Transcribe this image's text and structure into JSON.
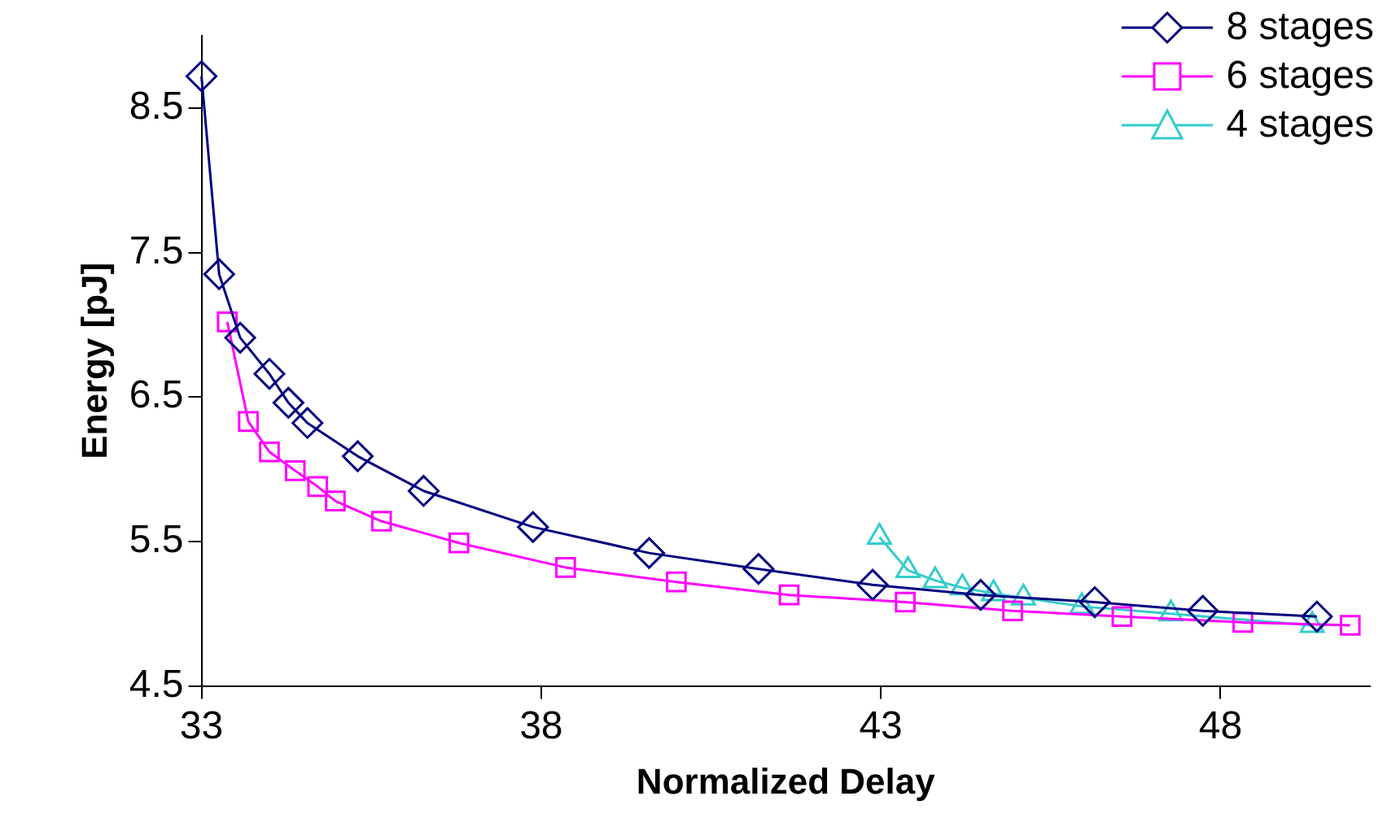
{
  "chart_data": {
    "type": "line",
    "xlabel": "Normalized Delay",
    "ylabel": "Energy [pJ]",
    "xlim": [
      33,
      50.2
    ],
    "xticks": [
      33,
      38,
      43,
      48
    ],
    "ylim": [
      4.5,
      9.0
    ],
    "yticks": [
      4.5,
      5.5,
      6.5,
      7.5,
      8.5
    ],
    "grid": false,
    "legend": "top right",
    "series": [
      {
        "name": "8 stages",
        "color": "#000080",
        "marker": "diamond",
        "x": [
          33.0,
          33.26,
          33.57,
          34.0,
          34.28,
          34.56,
          35.3,
          36.27,
          37.88,
          39.59,
          41.2,
          42.88,
          44.47,
          46.15,
          47.74,
          49.42
        ],
        "values": [
          8.72,
          7.35,
          6.91,
          6.66,
          6.46,
          6.32,
          6.09,
          5.85,
          5.6,
          5.42,
          5.31,
          5.2,
          5.13,
          5.08,
          5.02,
          4.98
        ]
      },
      {
        "name": "6 stages",
        "color": "#ff00ff",
        "marker": "square",
        "x": [
          33.38,
          33.69,
          34.0,
          34.38,
          34.71,
          34.97,
          35.65,
          36.79,
          38.36,
          39.99,
          41.65,
          43.36,
          44.94,
          46.55,
          48.33,
          49.91
        ],
        "values": [
          7.02,
          6.33,
          6.12,
          5.99,
          5.88,
          5.78,
          5.64,
          5.49,
          5.32,
          5.22,
          5.13,
          5.08,
          5.02,
          4.98,
          4.94,
          4.92
        ]
      },
      {
        "name": "4 stages",
        "color": "#33cccc",
        "marker": "triangle",
        "x": [
          42.98,
          43.4,
          43.8,
          44.2,
          44.66,
          45.1,
          45.96,
          47.27,
          49.35
        ],
        "values": [
          5.53,
          5.3,
          5.23,
          5.18,
          5.14,
          5.11,
          5.05,
          5.0,
          4.92
        ]
      }
    ]
  }
}
